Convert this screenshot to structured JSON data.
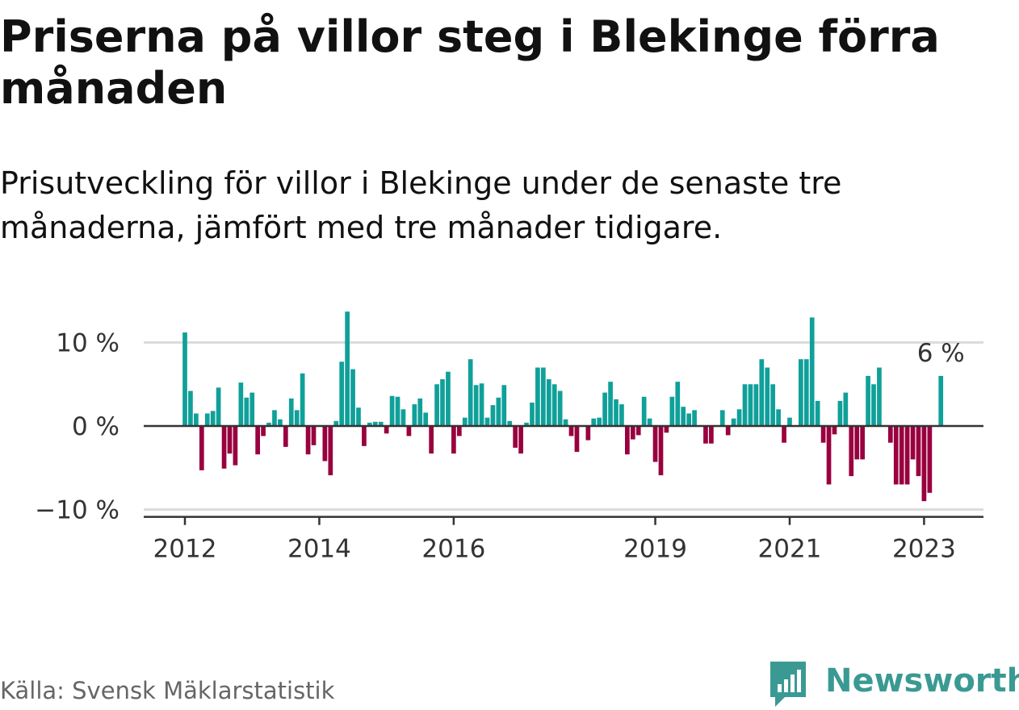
{
  "title": "Priserna på villor steg i Blekinge förra månaden",
  "subtitle": "Prisutveckling för villor i Blekinge under de senaste tre månaderna, jämfört med tre månader tidigare.",
  "source": "Källa: Svensk Mäklarstatistik",
  "brand": {
    "name": "Newsworthy",
    "logo_icon": "newsworthy-logo-icon"
  },
  "colors": {
    "positive": "#10a09a",
    "negative": "#99003f",
    "grid": "#dcdcdc",
    "zero": "#333333"
  },
  "chart_data": {
    "type": "bar",
    "x_start": "2012-01",
    "x_step": "month",
    "x_ticks": [
      {
        "label": "2012",
        "index": 0
      },
      {
        "label": "2014",
        "index": 24
      },
      {
        "label": "2016",
        "index": 48
      },
      {
        "label": "2019",
        "index": 84
      },
      {
        "label": "2021",
        "index": 108
      },
      {
        "label": "2023",
        "index": 132
      }
    ],
    "y_ticks": [
      {
        "value": 10,
        "label": "10 %"
      },
      {
        "value": 0,
        "label": "0 %"
      },
      {
        "value": -10,
        "label": "−10 %"
      }
    ],
    "ylim": [
      -10.5,
      14
    ],
    "annotation": {
      "label": "6 %",
      "index": 135
    },
    "values": [
      11.2,
      4.2,
      1.5,
      -5.3,
      1.5,
      1.8,
      4.6,
      -5.1,
      -3.3,
      -4.7,
      5.2,
      3.4,
      4.0,
      -3.4,
      -1.2,
      0.4,
      1.9,
      0.8,
      -2.5,
      3.3,
      1.9,
      6.3,
      -3.4,
      -2.3,
      0.0,
      -4.2,
      -5.9,
      0.6,
      7.7,
      13.7,
      6.8,
      2.2,
      -2.4,
      0.4,
      0.5,
      0.5,
      -0.9,
      3.6,
      3.5,
      2.0,
      -1.2,
      2.6,
      3.3,
      1.6,
      -3.3,
      5.0,
      5.6,
      6.5,
      -3.3,
      -1.2,
      1.0,
      8.0,
      4.9,
      5.1,
      1.0,
      2.5,
      3.4,
      4.9,
      0.6,
      -2.6,
      -3.3,
      0.4,
      2.8,
      7.0,
      7.0,
      5.6,
      5.0,
      4.2,
      0.8,
      -1.2,
      -3.1,
      0.0,
      -1.7,
      0.9,
      1.0,
      4.0,
      5.3,
      3.2,
      2.6,
      -3.4,
      -1.6,
      -1.1,
      3.5,
      0.9,
      -4.3,
      -5.9,
      -0.8,
      3.5,
      5.3,
      2.3,
      1.5,
      1.9,
      0.0,
      -2.1,
      -2.1,
      0.0,
      1.9,
      -1.1,
      0.9,
      2.0,
      5.0,
      5.0,
      5.0,
      8.0,
      7.0,
      5.0,
      2.0,
      -2.0,
      1.0,
      0.0,
      8.0,
      8.0,
      13.0,
      3.0,
      -2.0,
      -7.0,
      -1.0,
      3.0,
      4.0,
      -6.0,
      -4.0,
      -4.0,
      6.0,
      5.0,
      7.0,
      0.0,
      -2.0,
      -7.0,
      -7.0,
      -7.0,
      -4.0,
      -6.0,
      -9.0,
      -8.0,
      0.0,
      6.0
    ]
  }
}
